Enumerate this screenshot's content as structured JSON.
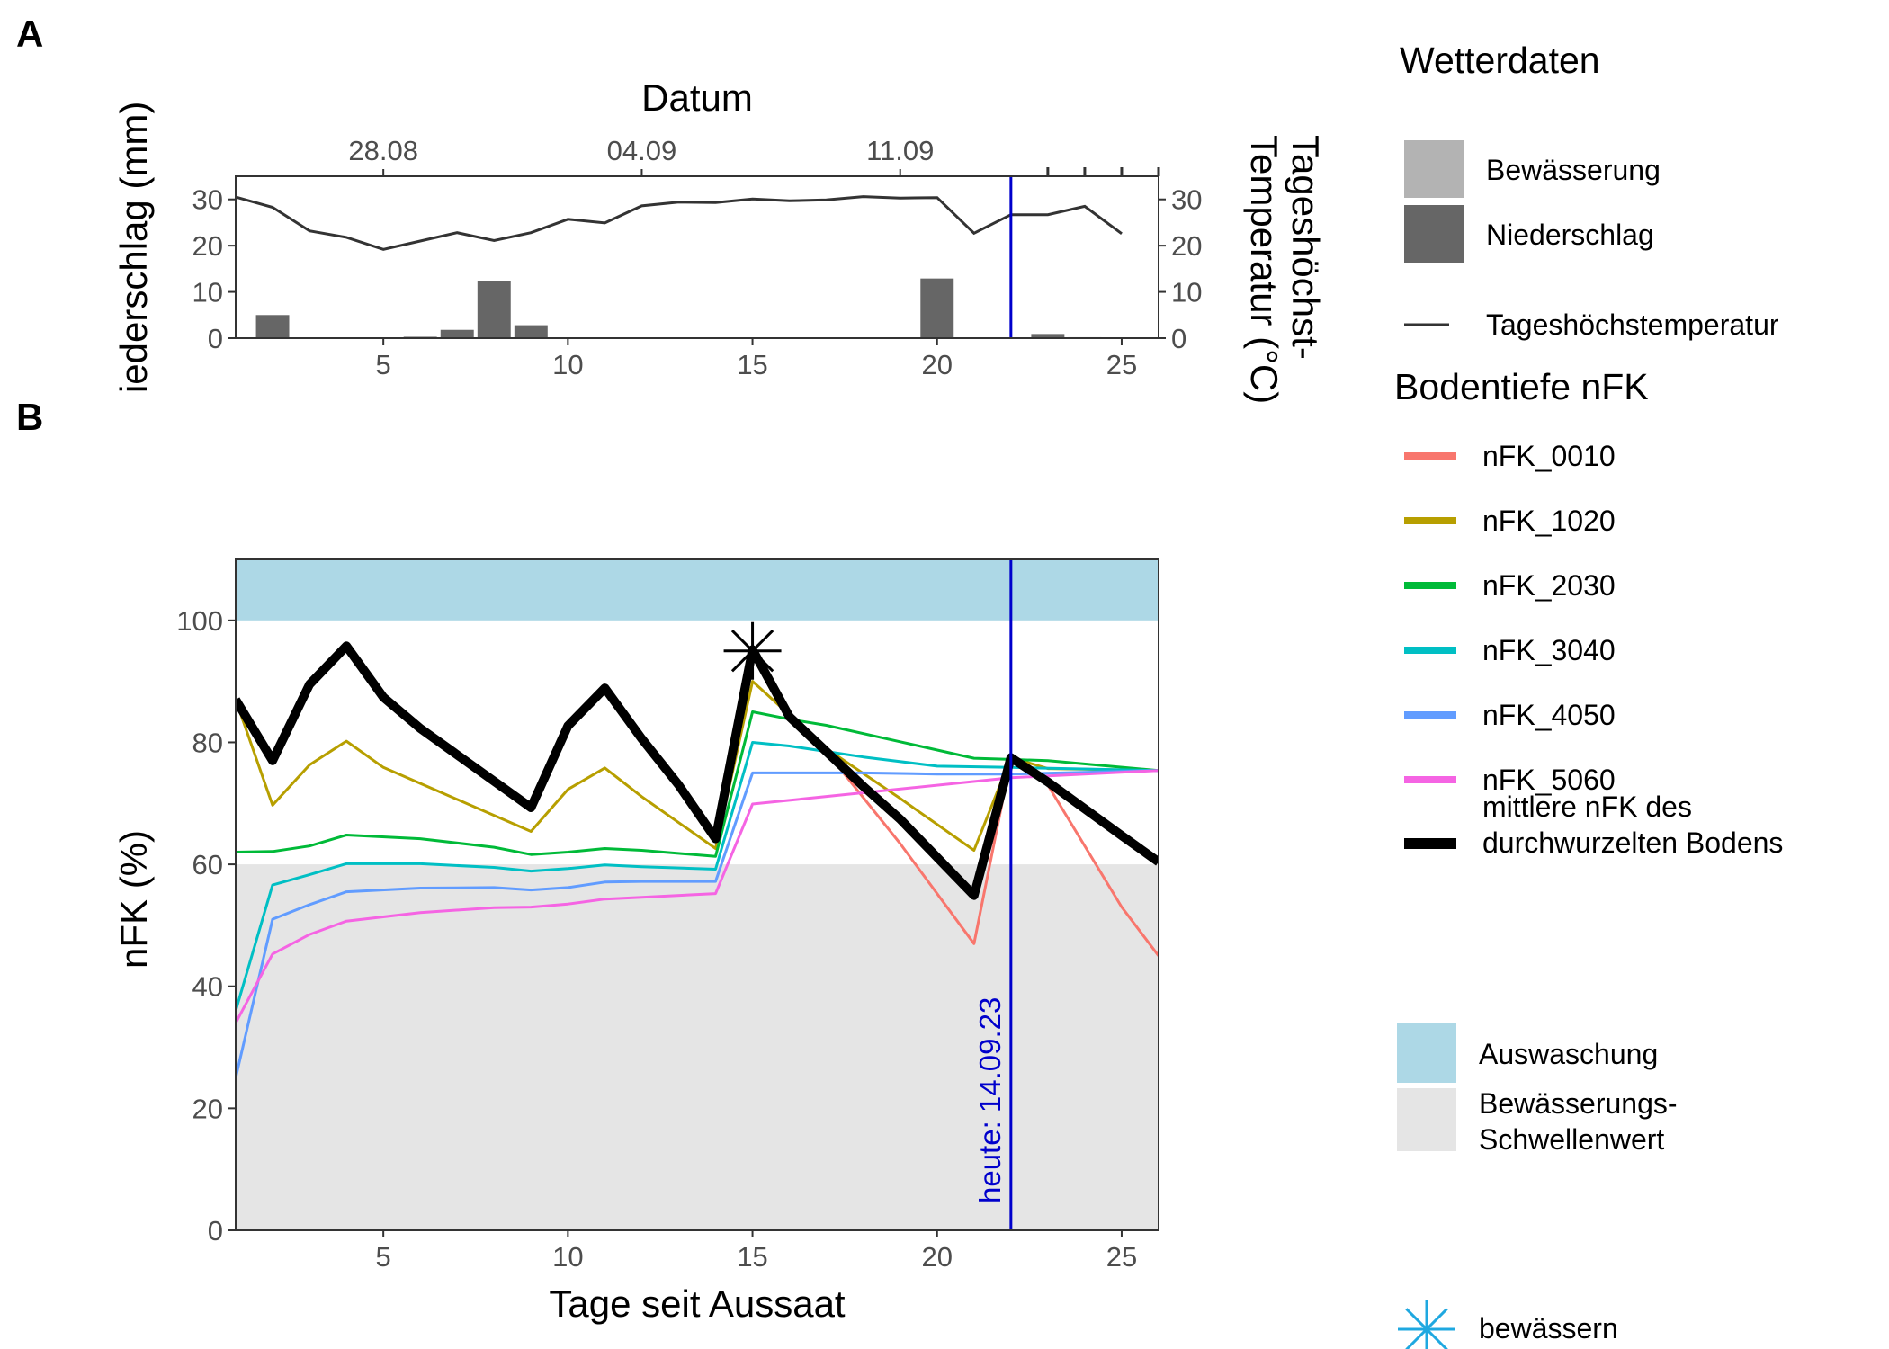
{
  "panels": {
    "a": "A",
    "b": "B"
  },
  "colors": {
    "today_line": "#0000CC",
    "precip": "#666666",
    "irrigation": "#B3B3B3",
    "temperature": "#333333",
    "leaching_band": "#ADD8E6",
    "threshold_band": "#E5E5E5",
    "mean_nfk": "#000000",
    "irrigate_marker": "#1FA8E0"
  },
  "chart_data": [
    {
      "type": "bar",
      "panel": "A",
      "title": "",
      "x_title": "",
      "top_axis_title": "Datum",
      "top_ticks": [
        "28.08",
        "04.09",
        "11.09"
      ],
      "top_tick_days": [
        5,
        12,
        19
      ],
      "ylabel_left": "Niederschlag (mm)",
      "ylabel_right": "Tageshöchst-\nTemperatur (°C)",
      "xlim": [
        1,
        26
      ],
      "ylim": [
        0,
        35
      ],
      "x_ticks": [
        5,
        10,
        15,
        20,
        25
      ],
      "y_ticks": [
        0,
        10,
        20,
        30
      ],
      "precipitation": {
        "name": "Niederschlag",
        "x": [
          2,
          6,
          7,
          8,
          9,
          20,
          23,
          24
        ],
        "values": [
          5,
          0.3,
          1.8,
          12.4,
          2.8,
          12.9,
          0.9,
          0.2
        ]
      },
      "temperature": {
        "name": "Tageshöchstemperatur",
        "x": [
          1,
          2,
          3,
          4,
          5,
          6,
          7,
          8,
          9,
          10,
          11,
          12,
          13,
          14,
          15,
          16,
          17,
          18,
          19,
          20,
          21,
          22,
          23,
          24,
          25
        ],
        "values": [
          30.5,
          28.3,
          23.2,
          21.8,
          19.2,
          21.0,
          22.8,
          21.1,
          22.8,
          25.7,
          24.9,
          28.6,
          29.4,
          29.3,
          30.1,
          29.7,
          29.9,
          30.6,
          30.3,
          30.4,
          22.7,
          26.7,
          26.7,
          28.5,
          22.6
        ]
      },
      "today_x": 22,
      "future_tick_days": [
        23,
        24,
        25,
        26
      ]
    },
    {
      "type": "line",
      "panel": "B",
      "title": "",
      "xlabel": "Tage seit Aussaat",
      "ylabel": "nFK (%)",
      "xlim": [
        1,
        26
      ],
      "ylim": [
        0,
        110
      ],
      "x_ticks": [
        5,
        10,
        15,
        20,
        25
      ],
      "y_ticks": [
        0,
        20,
        40,
        60,
        80,
        100
      ],
      "bands": [
        {
          "name": "Auswaschung",
          "from": 100,
          "to": 110
        },
        {
          "name": "Bewässerungs-\nSchwellenwert",
          "from": 0,
          "to": 60
        }
      ],
      "today": {
        "x": 22,
        "label": "heute: 14.09.23"
      },
      "irrigation_marker": {
        "x": 15,
        "y": 95
      },
      "series": [
        {
          "name": "nFK_0010",
          "color": "#F8766D",
          "width": 3,
          "x": [
            1,
            2,
            3,
            4,
            5,
            9,
            10,
            11,
            14,
            15,
            16,
            17,
            19,
            21,
            22,
            23,
            25,
            26
          ],
          "values": [
            87,
            77,
            89.5,
            95.8,
            87.4,
            69.3,
            82.7,
            88.9,
            64.2,
            95.2,
            84.2,
            78.5,
            63.4,
            47,
            77.2,
            73,
            53,
            45
          ]
        },
        {
          "name": "nFK_1020",
          "color": "#B79F00",
          "width": 3,
          "x": [
            1,
            2,
            3,
            4,
            5,
            9,
            10,
            11,
            12,
            14,
            15,
            16,
            17,
            19,
            21,
            22,
            23,
            26
          ],
          "values": [
            87,
            69.7,
            76.3,
            80.2,
            75.9,
            65.4,
            72.3,
            75.8,
            71.1,
            62.6,
            90,
            84.5,
            79,
            70.8,
            62.3,
            77.5,
            75.7,
            75.4
          ]
        },
        {
          "name": "nFK_2030",
          "color": "#00BA38",
          "width": 3,
          "x": [
            1,
            2,
            3,
            4,
            6,
            8,
            9,
            10,
            11,
            12,
            14,
            15,
            16,
            17,
            19,
            21,
            22,
            23,
            26
          ],
          "values": [
            62,
            62.1,
            63,
            64.8,
            64.2,
            62.8,
            61.6,
            62,
            62.6,
            62.3,
            61.3,
            85,
            83.8,
            82.8,
            80.1,
            77.4,
            77.2,
            77,
            75.4
          ]
        },
        {
          "name": "nFK_3040",
          "color": "#00BFC4",
          "width": 3,
          "x": [
            1,
            2,
            3,
            4,
            6,
            8,
            9,
            10,
            11,
            12,
            14,
            15,
            16,
            18,
            20,
            22,
            26
          ],
          "values": [
            36,
            56.6,
            58.3,
            60.1,
            60.1,
            59.5,
            58.9,
            59.3,
            59.9,
            59.6,
            59.2,
            80,
            79.4,
            77.6,
            76.1,
            75.9,
            75.4
          ]
        },
        {
          "name": "nFK_4050",
          "color": "#619CFF",
          "width": 3,
          "x": [
            1,
            2,
            3,
            4,
            6,
            8,
            9,
            10,
            11,
            12,
            14,
            15,
            16,
            18,
            20,
            22,
            26
          ],
          "values": [
            25,
            51,
            53.4,
            55.5,
            56.1,
            56.2,
            55.8,
            56.2,
            57.1,
            57.2,
            57.2,
            75,
            75,
            75,
            74.8,
            74.8,
            75.4
          ]
        },
        {
          "name": "nFK_5060",
          "color": "#F564E3",
          "width": 3,
          "x": [
            1,
            2,
            3,
            4,
            6,
            8,
            9,
            10,
            11,
            12,
            14,
            15,
            22,
            26
          ],
          "values": [
            34,
            45.3,
            48.5,
            50.7,
            52.1,
            52.9,
            53,
            53.5,
            54.3,
            54.6,
            55.2,
            69.9,
            74.2,
            75.4
          ]
        },
        {
          "name": "mittlere nFK des\ndurchwurzelten Bodens",
          "color": "#000000",
          "width": 10,
          "x": [
            1,
            2,
            3,
            4,
            5,
            6,
            9,
            10,
            11,
            12,
            13,
            14,
            15,
            16,
            18,
            19,
            21,
            22,
            23,
            25,
            26
          ],
          "values": [
            87,
            77,
            89.5,
            95.8,
            87.4,
            82.3,
            69.3,
            82.7,
            88.9,
            80.6,
            73,
            64.2,
            95.2,
            84.2,
            72.8,
            67.4,
            54.9,
            77.5,
            73.5,
            64.7,
            60.4
          ]
        }
      ]
    }
  ],
  "legend": {
    "weather_title": "Wetterdaten",
    "weather_items": [
      {
        "label": "Bewässerung",
        "kind": "irrigation"
      },
      {
        "label": "Niederschlag",
        "kind": "precip"
      },
      {
        "label": "Tageshöchstemperatur",
        "kind": "temperature"
      }
    ],
    "depth_title": "Bodentiefe nFK",
    "bands": [
      {
        "label": "Auswaschung",
        "kind": "leaching_band"
      },
      {
        "label": "Bewässerungs-\nSchwellenwert",
        "kind": "threshold_band"
      }
    ],
    "irrigate_label": "bewässern"
  }
}
